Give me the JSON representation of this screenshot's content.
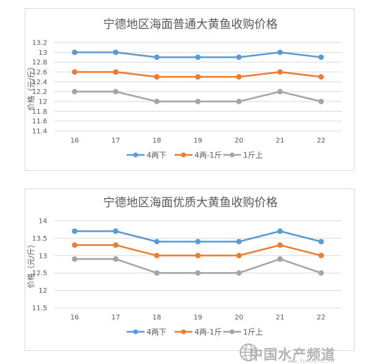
{
  "chart_data": [
    {
      "type": "line",
      "title": "宁德地区海面普通大黄鱼收购价格",
      "ylabel": "价格（元/斤）",
      "xlabel": "",
      "categories": [
        "16",
        "17",
        "18",
        "19",
        "20",
        "21",
        "22"
      ],
      "ylim": [
        11.4,
        13.2
      ],
      "yticks": [
        "13.2",
        "13",
        "12.8",
        "12.6",
        "12.4",
        "12.2",
        "12",
        "11.8",
        "11.6",
        "11.4"
      ],
      "ytick_values": [
        13.2,
        13,
        12.8,
        12.6,
        12.4,
        12.2,
        12,
        11.8,
        11.6,
        11.4
      ],
      "grid": true,
      "legend": "bottom",
      "series": [
        {
          "name": "4两下",
          "color": "#5b9bd5",
          "values": [
            13,
            13,
            12.9,
            12.9,
            12.9,
            13,
            12.9
          ]
        },
        {
          "name": "4两-1斤",
          "color": "#ed7d31",
          "values": [
            12.6,
            12.6,
            12.5,
            12.5,
            12.5,
            12.6,
            12.5
          ]
        },
        {
          "name": "1斤上",
          "color": "#a5a5a5",
          "values": [
            12.2,
            12.2,
            12,
            12,
            12,
            12.2,
            12
          ]
        }
      ]
    },
    {
      "type": "line",
      "title": "宁德地区海面优质大黄鱼收购价格",
      "ylabel": "价格（元/斤）",
      "xlabel": "",
      "categories": [
        "16",
        "17",
        "18",
        "19",
        "20",
        "21",
        "22"
      ],
      "ylim": [
        11.5,
        14
      ],
      "yticks": [
        "14",
        "13.5",
        "13",
        "12.5",
        "12",
        "11.5"
      ],
      "ytick_values": [
        14,
        13.5,
        13,
        12.5,
        12,
        11.5
      ],
      "grid": true,
      "legend": "bottom",
      "series": [
        {
          "name": "4两下",
          "color": "#5b9bd5",
          "values": [
            13.7,
            13.7,
            13.4,
            13.4,
            13.4,
            13.7,
            13.4
          ]
        },
        {
          "name": "4两-1斤",
          "color": "#ed7d31",
          "values": [
            13.3,
            13.3,
            13,
            13,
            13,
            13.3,
            13
          ]
        },
        {
          "name": "1斤上",
          "color": "#a5a5a5",
          "values": [
            12.9,
            12.9,
            12.5,
            12.5,
            12.5,
            12.9,
            12.5
          ]
        }
      ]
    }
  ],
  "watermark": {
    "text": "中国水产频道",
    "subtext": "www.fishfirst.cn",
    "icon": "globe-icon"
  }
}
